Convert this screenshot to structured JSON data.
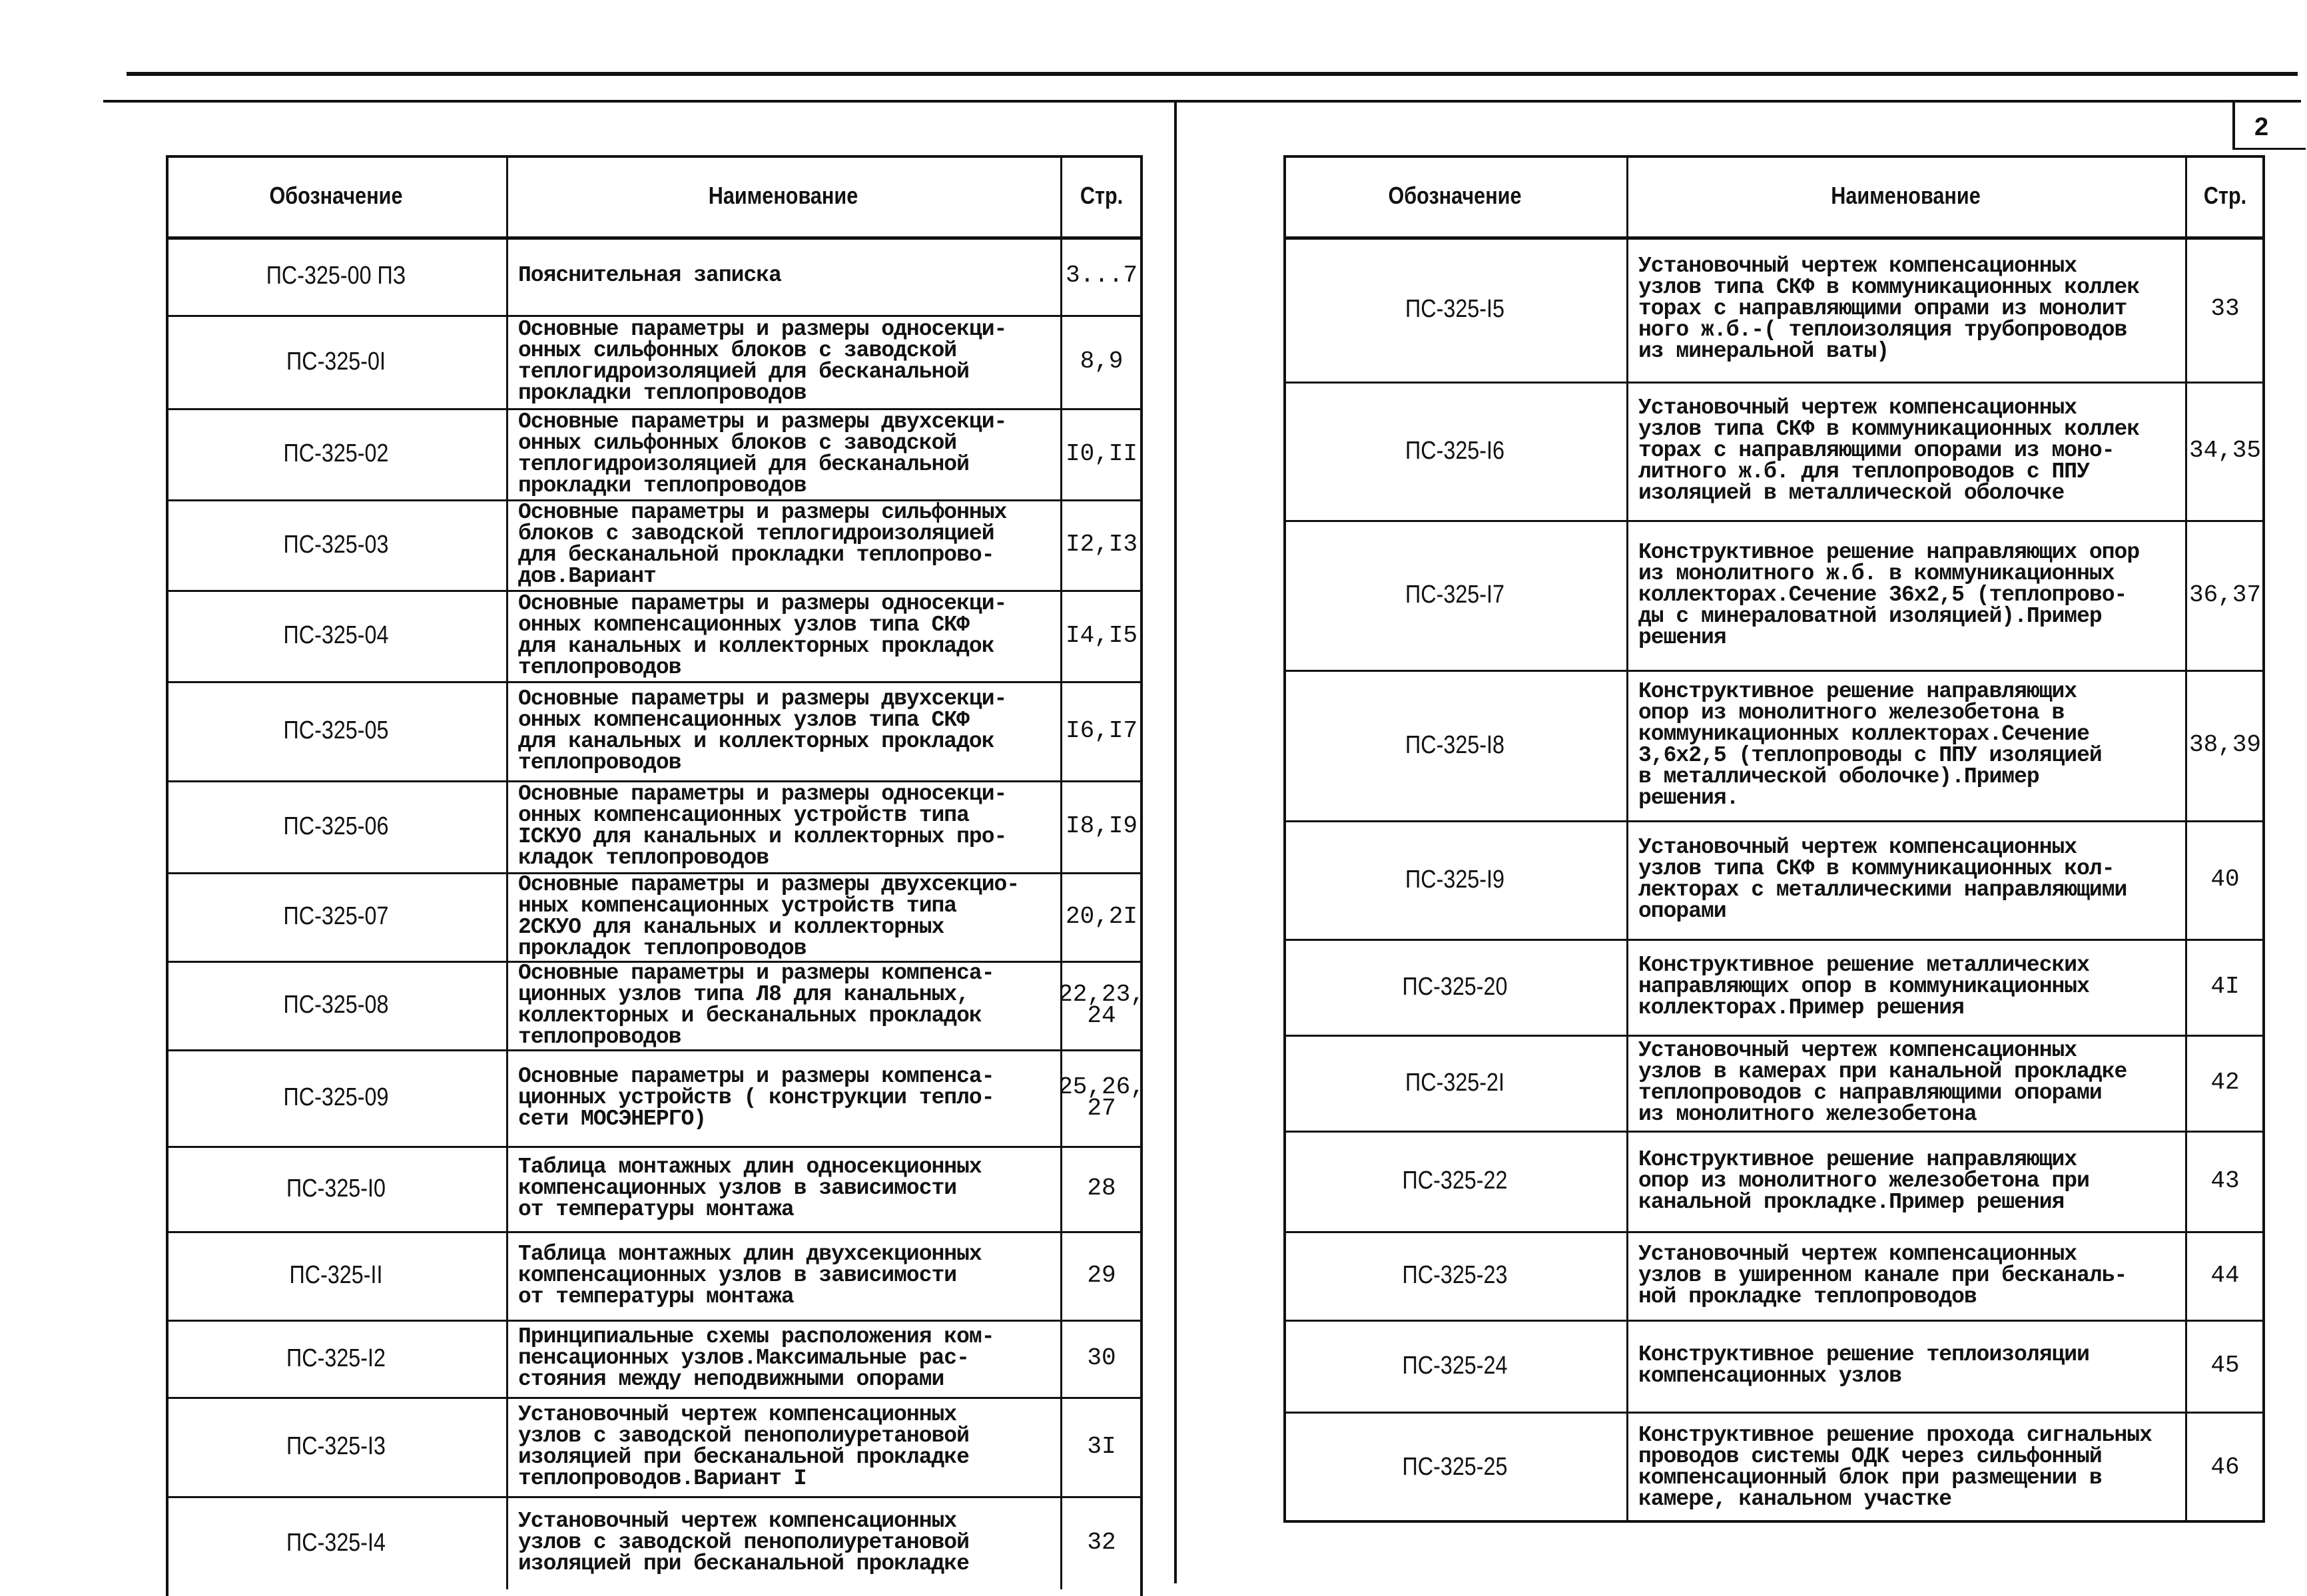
{
  "sheet_number": "2",
  "left_table": {
    "headers": {
      "code": "Обозначение",
      "name": "Наименование",
      "page": "Стр."
    },
    "rows": [
      {
        "code": "ПС-325-00 ПЗ",
        "name": "Пояснительная    записка",
        "page": "3...7"
      },
      {
        "code": "ПС-325-0I",
        "name": "Основные параметры и размеры односекци-\nонных сильфонных блоков с заводской\nтеплогидроизоляцией для бесканальной\nпрокладки теплопроводов",
        "page": "8,9"
      },
      {
        "code": "ПС-325-02",
        "name": "Основные параметры и размеры двухсекци-\nонных сильфонных блоков с заводской\nтеплогидроизоляцией для бесканальной\nпрокладки теплопроводов",
        "page": "I0,II"
      },
      {
        "code": "ПС-325-03",
        "name": "Основные параметры и размеры сильфонных\nблоков с заводской теплогидроизоляцией\nдля бесканальной прокладки теплопрово-\nдов.Вариант",
        "page": "I2,I3"
      },
      {
        "code": "ПС-325-04",
        "name": "Основные параметры и размеры односекци-\nонных компенсационных узлов типа СКФ\nдля канальных и коллекторных прокладок\nтеплопроводов",
        "page": "I4,I5"
      },
      {
        "code": "ПС-325-05",
        "name": "Основные параметры и размеры двухсекци-\nонных компенсационных узлов типа СКФ\nдля канальных и коллекторных прокладок\nтеплопроводов",
        "page": "I6,I7"
      },
      {
        "code": "ПС-325-06",
        "name": "Основные параметры и размеры односекци-\nонных компенсационных устройств типа\nIСКУО для канальных и коллекторных про-\nкладок теплопроводов",
        "page": "I8,I9"
      },
      {
        "code": "ПС-325-07",
        "name": "Основные параметры и размеры двухсекцио-\nнных компенсационных устройств типа\n2СКУО для канальных и коллекторных\nпрокладок теплопроводов",
        "page": "20,2I"
      },
      {
        "code": "ПС-325-08",
        "name": "Основные параметры и размеры компенса-\nционных узлов типа Л8 для канальных,\nколлекторных и бесканальных прокладок\nтеплопроводов",
        "page": "22,23,\n24"
      },
      {
        "code": "ПС-325-09",
        "name": "Основные параметры и размеры компенса-\nционных устройств ( конструкции тепло-\nсети МОСЭНЕРГО)",
        "page": "25,26,\n27"
      },
      {
        "code": "ПС-325-I0",
        "name": "Таблица монтажных длин односекционных\nкомпенсационных узлов в зависимости\nот температуры монтажа",
        "page": "28"
      },
      {
        "code": "ПС-325-II",
        "name": "Таблица монтажных длин двухсекционных\nкомпенсационных узлов в зависимости\nот температуры монтажа",
        "page": "29"
      },
      {
        "code": "ПС-325-I2",
        "name": "Принципиальные схемы расположения ком-\nпенсационных узлов.Максимальные рас-\nстояния между неподвижными опорами",
        "page": "30"
      },
      {
        "code": "ПС-325-I3",
        "name": "Установочный чертеж компенсационных\nузлов с заводской пенополиуретановой\nизоляцией при бесканальной прокладке\nтеплопроводов.Вариант I",
        "page": "3I"
      },
      {
        "code": "ПС-325-I4",
        "name": "Установочный чертеж компенсационных\nузлов с заводской пенополиуретановой\nизоляцией при бесканальной прокладке",
        "page": "32"
      }
    ]
  },
  "right_table": {
    "headers": {
      "code": "Обозначение",
      "name": "Наименование",
      "page": "Стр."
    },
    "rows": [
      {
        "code": "ПС-325-I5",
        "name": "Установочный чертеж компенсационных\nузлов типа СКФ в коммуникационных коллек\nторах  с направляющими опрами из монолит\nного ж.б.-( теплоизоляция трубопроводов\nиз минеральной ваты)",
        "page": "33"
      },
      {
        "code": "ПС-325-I6",
        "name": "Установочный чертеж компенсационных\nузлов типа СКФ в коммуникационных коллек\nторах с направляющими опорами из моно-\nлитного ж.б. для теплопроводов с ППУ\nизоляцией в металлической  оболочке",
        "page": "34,35"
      },
      {
        "code": "ПС-325-I7",
        "name": "Конструктивное решение направляющих опор\nиз монолитного ж.б. в коммуникационных\nколлекторах.Сечение 36х2,5 (теплопрово-\nды с минераловатной изоляцией).Пример\nрешения",
        "page": "36,37"
      },
      {
        "code": "ПС-325-I8",
        "name": "Конструктивное решение направляющих\nопор из монолитного железобетона в\nкоммуникационных коллекторах.Сечение\n3,6х2,5 (теплопроводы с ППУ изоляцией\nв металлической оболочке).Пример\nрешения.",
        "page": "38,39"
      },
      {
        "code": "ПС-325-I9",
        "name": "Установочный чертеж компенсационных\nузлов типа СКФ в коммуникационных кол-\nлекторах с металлическими направляющими\nопорами",
        "page": "40"
      },
      {
        "code": "ПС-325-20",
        "name": "Конструктивное решение металлических\nнаправляющих опор в коммуникационных\nколлекторах.Пример решения",
        "page": "4I"
      },
      {
        "code": "ПС-325-2I",
        "name": "Установочный чертеж компенсационных\nузлов в камерах при канальной прокладке\nтеплопроводов с направляющими опорами\nиз монолитного железобетона",
        "page": "42"
      },
      {
        "code": "ПС-325-22",
        "name": "Конструктивное решение направляющих\nопор из монолитного железобетона при\nканальной прокладке.Пример решения",
        "page": "43"
      },
      {
        "code": "ПС-325-23",
        "name": "Установочный чертеж компенсационных\nузлов в уширенном канале при бесканаль-\nной прокладке теплопроводов",
        "page": "44"
      },
      {
        "code": "ПС-325-24",
        "name": "Конструктивное решение теплоизоляции\nкомпенсационных узлов",
        "page": "45"
      },
      {
        "code": "ПС-325-25",
        "name": "Конструктивное решение прохода сигнальных\nпроводов системы ОДК через сильфонный\nкомпенсационный блок при размещении в\nкамере, канальном участке",
        "page": "46"
      }
    ]
  }
}
